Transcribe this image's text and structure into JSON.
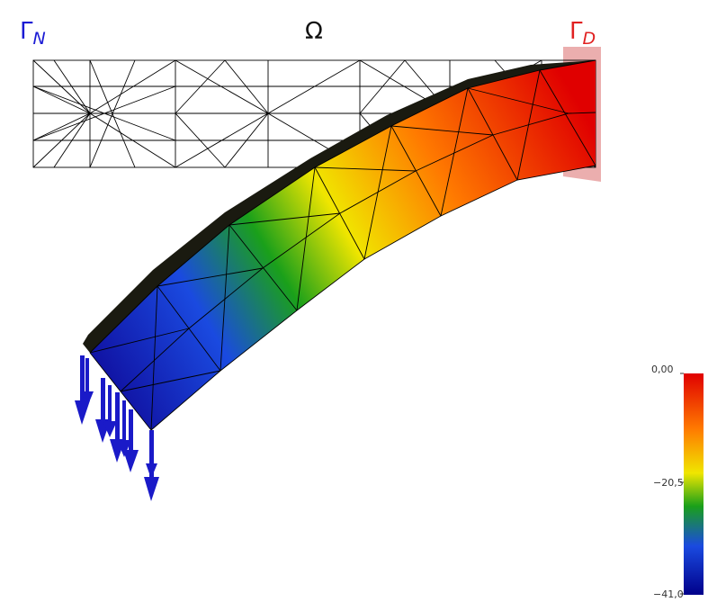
{
  "labels": {
    "neumann": {
      "symbol": "Γ",
      "sub": "N",
      "color": "#1a1ad4"
    },
    "domain": {
      "symbol": "Ω",
      "color": "#111111"
    },
    "dirichlet": {
      "symbol": "Γ",
      "sub": "D",
      "color": "#e02020"
    }
  },
  "colorbar": {
    "max_label": "0,00",
    "mid_label": "−20,5",
    "min_label": "−41,0",
    "colors": [
      "#e00000",
      "#ff7a00",
      "#f0e600",
      "#1aa01a",
      "#1a4ae0",
      "#00008a"
    ]
  },
  "mesh": {
    "stroke": "#000000"
  },
  "constraint_color": "#e8a0a0",
  "load_arrow_color": "#1a1ac8"
}
